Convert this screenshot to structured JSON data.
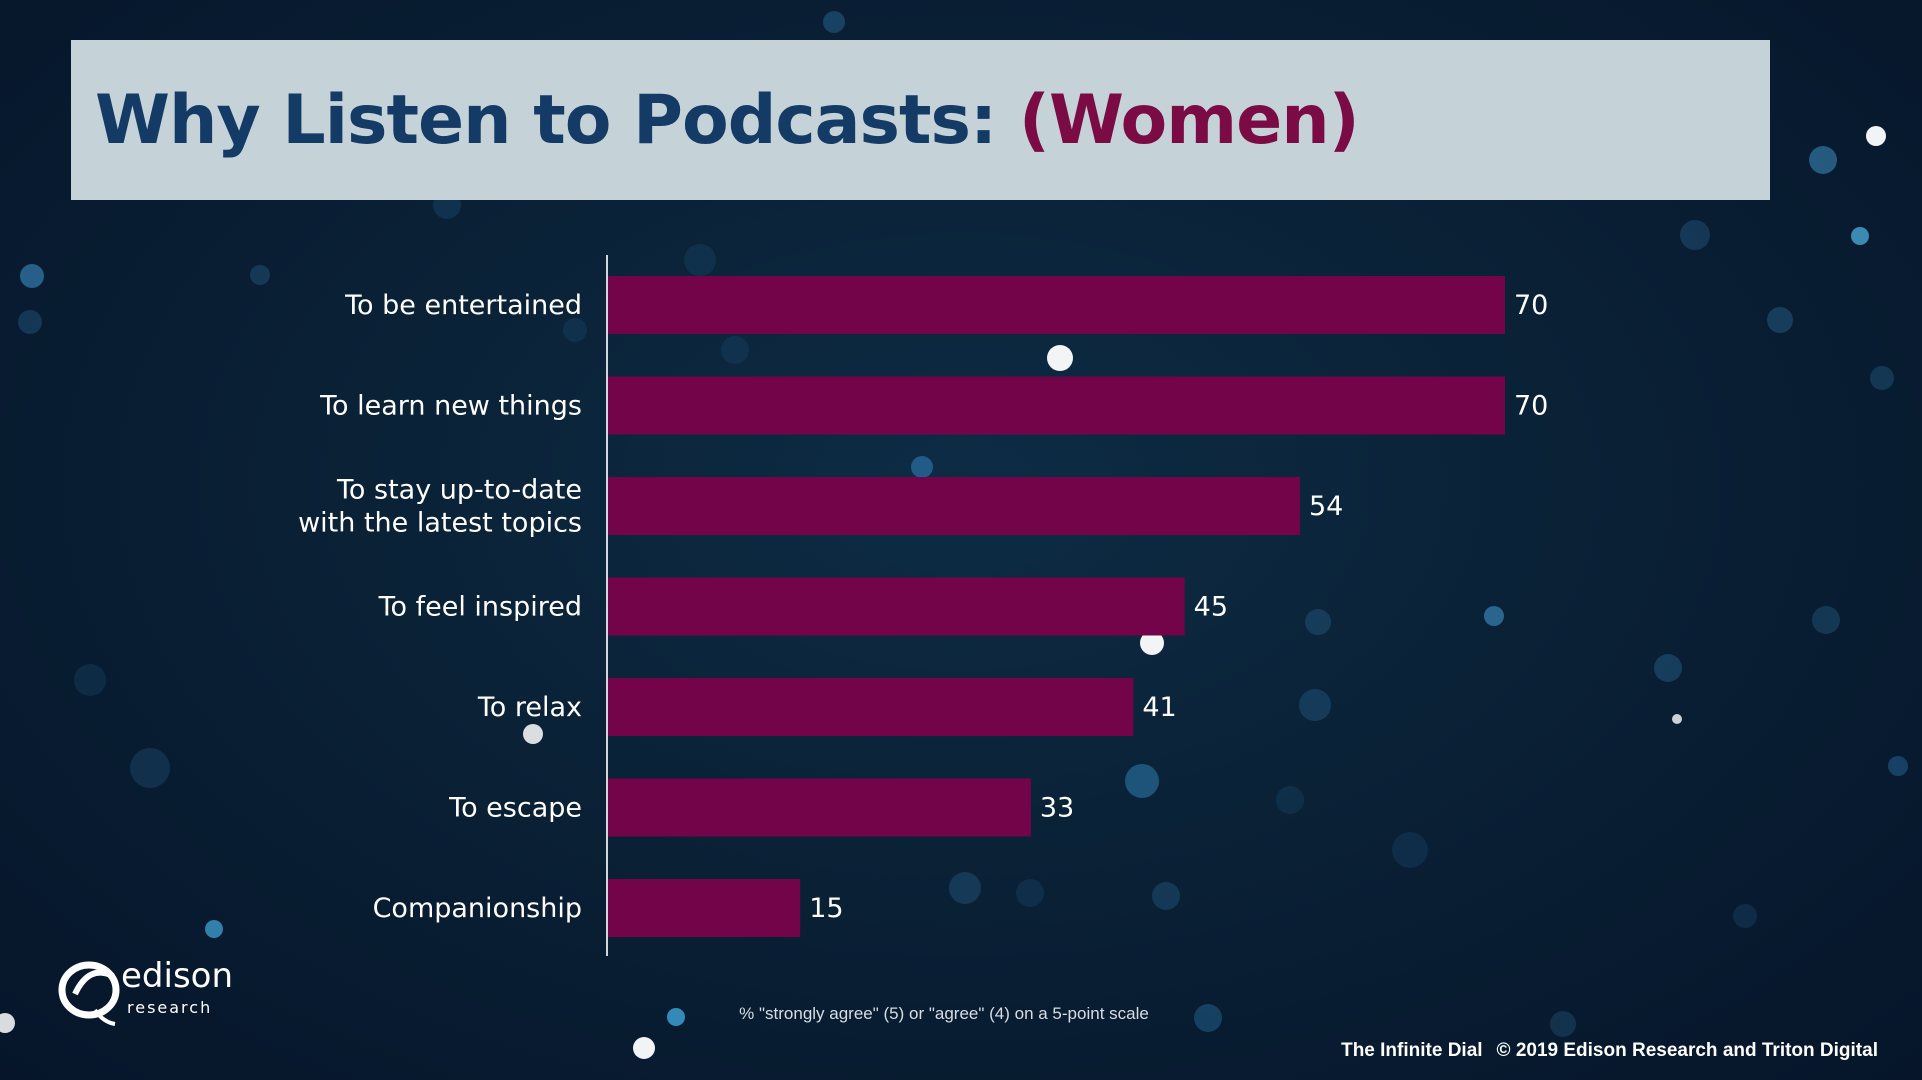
{
  "title": {
    "main": "Why Listen to Podcasts: ",
    "accent": "(Women)"
  },
  "colors": {
    "bar": "#74044a",
    "title_main": "#143a66",
    "title_accent": "#7a0b45",
    "axis": "#d0d6dc"
  },
  "chart_data": {
    "type": "bar",
    "orientation": "horizontal",
    "categories": [
      "To be entertained",
      "To learn new things",
      "To stay up-to-date\nwith the latest topics",
      "To feel inspired",
      "To relax",
      "To escape",
      "Companionship"
    ],
    "values": [
      70,
      70,
      54,
      45,
      41,
      33,
      15
    ],
    "xlim": [
      0,
      100
    ],
    "data_labels": true,
    "grid": false
  },
  "footnote": "% \"strongly agree\" (5) or \"agree\" (4) on a 5-point scale",
  "credit": {
    "left": "The Infinite Dial",
    "right": "© 2019 Edison Research and Triton Digital"
  },
  "logo": {
    "word": "edison",
    "sub": "research"
  }
}
